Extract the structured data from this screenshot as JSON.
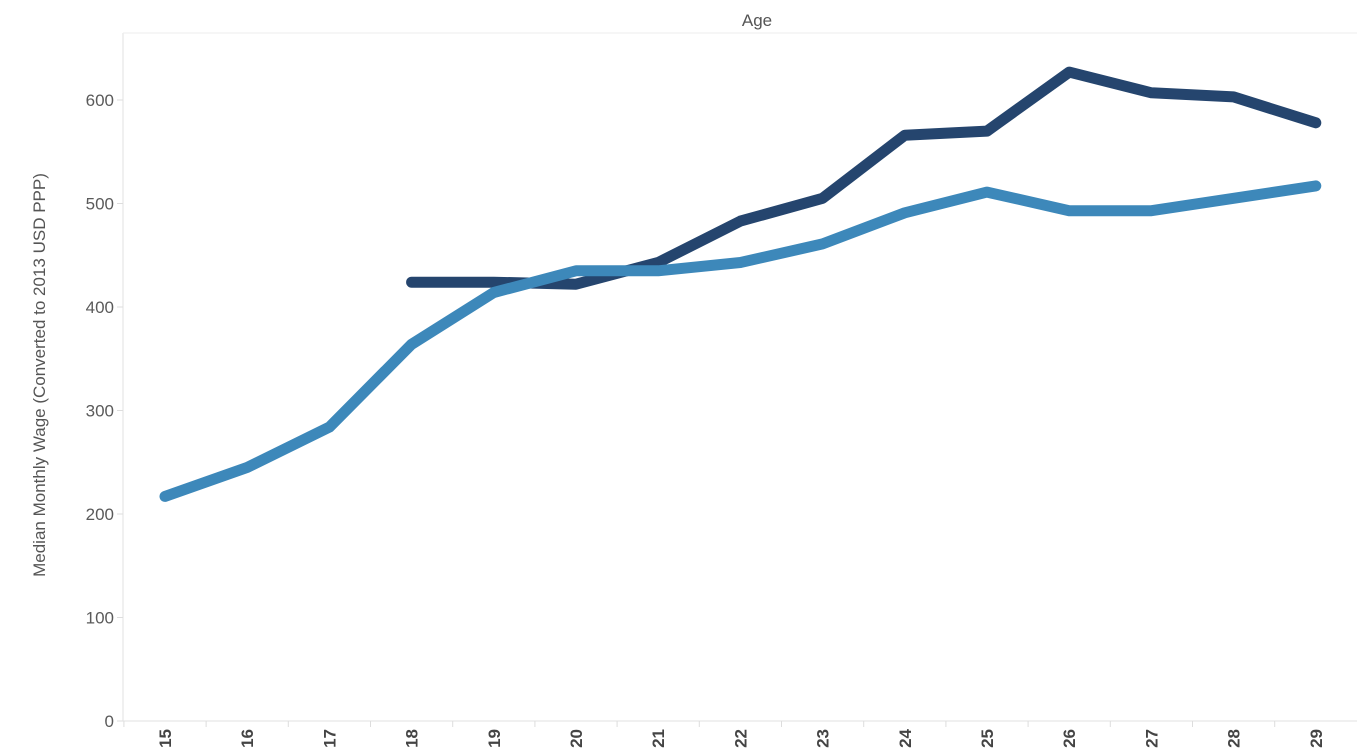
{
  "chart_data": {
    "type": "line",
    "title": "",
    "xlabel": "Age",
    "ylabel": "Median Monthly Wage (Converted to 2013 USD PPP)",
    "x": [
      15,
      16,
      17,
      18,
      19,
      20,
      21,
      22,
      23,
      24,
      25,
      26,
      27,
      28,
      29
    ],
    "x_tick_labels": [
      "15",
      "16",
      "17",
      "18",
      "19",
      "20",
      "21",
      "22",
      "23",
      "24",
      "25",
      "26",
      "27",
      "28",
      "29"
    ],
    "y_ticks": [
      0,
      100,
      200,
      300,
      400,
      500,
      600
    ],
    "y_tick_labels": [
      "0",
      "100",
      "200",
      "300",
      "400",
      "500",
      "600"
    ],
    "ylim": [
      0,
      650
    ],
    "grid": false,
    "series": [
      {
        "color": "#25456e",
        "values": [
          null,
          null,
          null,
          424,
          424,
          422,
          443,
          483,
          505,
          566,
          570,
          627,
          607,
          603,
          578
        ]
      },
      {
        "color": "#3d88ba",
        "values": [
          217,
          245,
          284,
          364,
          414,
          435,
          435,
          443,
          461,
          491,
          511,
          493,
          493,
          505,
          517
        ]
      }
    ]
  }
}
